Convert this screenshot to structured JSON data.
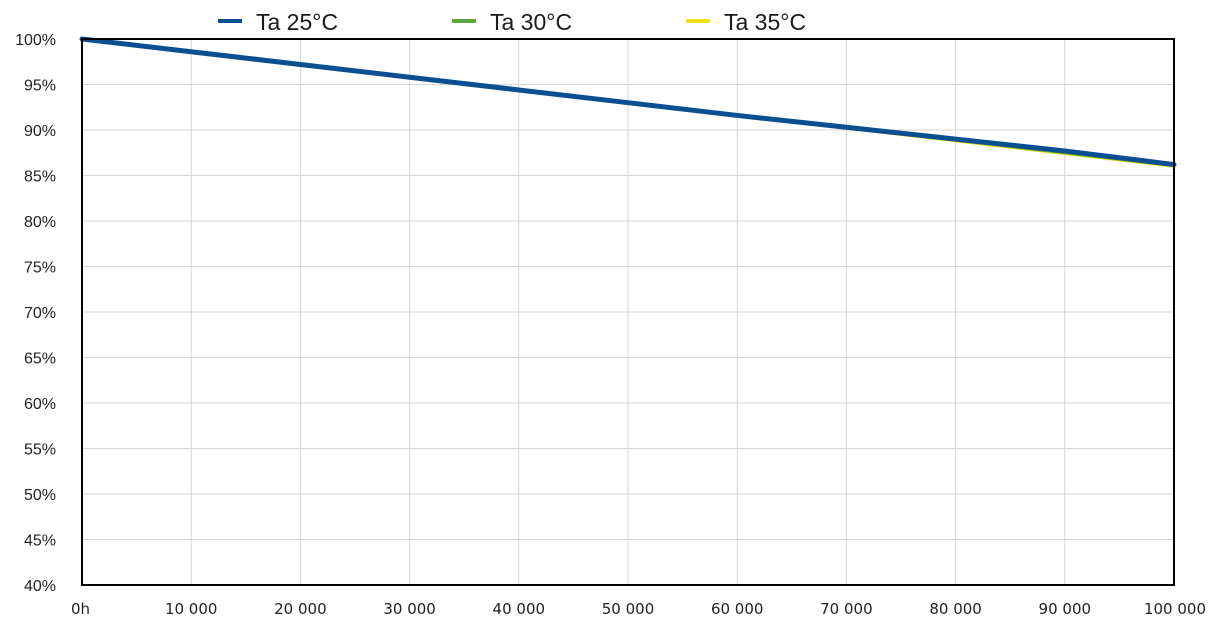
{
  "chart_data": {
    "type": "line",
    "title": "",
    "xlabel": "",
    "ylabel": "",
    "x": [
      0,
      10000,
      20000,
      30000,
      40000,
      50000,
      60000,
      70000,
      80000,
      90000,
      100000
    ],
    "xlim": [
      0,
      100000
    ],
    "ylim": [
      40,
      100
    ],
    "x_tick_labels": [
      "0h",
      "10 000",
      "20 000",
      "30 000",
      "40 000",
      "50 000",
      "60 000",
      "70 000",
      "80 000",
      "90 000",
      "100 000"
    ],
    "y_tick_labels": [
      "100%",
      "95%",
      "90%",
      "85%",
      "80%",
      "75%",
      "70%",
      "65%",
      "60%",
      "55%",
      "50%",
      "45%",
      "40%"
    ],
    "y_ticks": [
      100,
      95,
      90,
      85,
      80,
      75,
      70,
      65,
      60,
      55,
      50,
      45,
      40
    ],
    "grid": true,
    "legend_position": "top",
    "series": [
      {
        "name": "Ta 25°C",
        "color": "#0b4f93",
        "values": [
          100,
          98.6,
          97.2,
          95.8,
          94.4,
          93.0,
          91.6,
          90.3,
          89.0,
          87.7,
          86.2
        ]
      },
      {
        "name": "Ta 30°C",
        "color": "#5aab35",
        "values": [
          100,
          98.6,
          97.2,
          95.8,
          94.4,
          93.0,
          91.6,
          90.2,
          88.9,
          87.5,
          86.1
        ]
      },
      {
        "name": "Ta 35°C",
        "color": "#f2e01b",
        "values": [
          100,
          98.6,
          97.2,
          95.8,
          94.4,
          93.0,
          91.6,
          90.2,
          88.8,
          87.4,
          86.0
        ]
      }
    ]
  }
}
